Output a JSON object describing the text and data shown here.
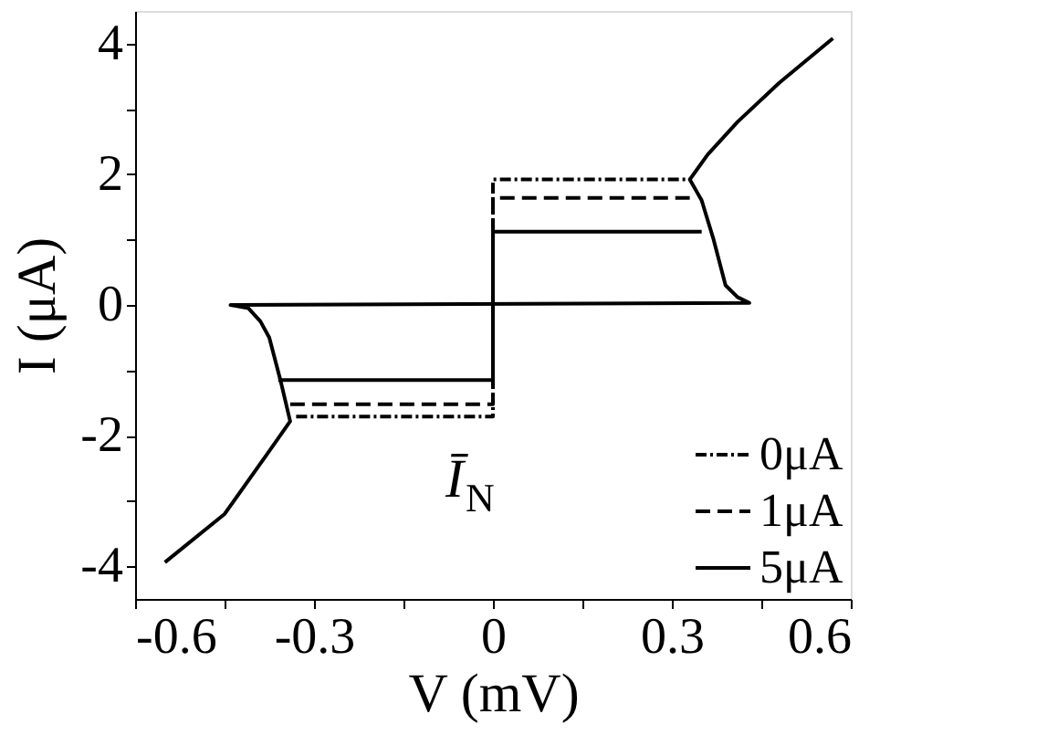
{
  "chart_data": {
    "type": "line",
    "xlabel": "V (mV)",
    "ylabel": "I (μA)",
    "xlim": [
      -0.6,
      0.6
    ],
    "ylim": [
      -4.5,
      4.5
    ],
    "xticks": [
      -0.6,
      {
        "value": -0.45,
        "label": null
      },
      -0.3,
      {
        "value": -0.15,
        "label": null
      },
      0,
      {
        "value": 0.15,
        "label": null
      },
      0.3,
      {
        "value": 0.45,
        "label": null
      },
      0.6
    ],
    "yticks": [
      -4,
      {
        "value": -3,
        "label": null
      },
      -2,
      {
        "value": -1,
        "label": null
      },
      0,
      {
        "value": 1,
        "label": null
      },
      2,
      {
        "value": 3,
        "label": null
      },
      4
    ],
    "grid": false,
    "legend": "bottom right",
    "marker": "none",
    "annotations": [
      "Ī$_{N}$"
    ],
    "series": [
      {
        "name": "0μA",
        "color": "#000000",
        "line_style": "dotted",
        "x": [
          -0.33,
          0,
          0,
          0.33
        ],
        "values": [
          -1.71,
          -1.71,
          1.92,
          1.92
        ]
      },
      {
        "name": "1μA",
        "color": "#000000",
        "line_style": "dashed",
        "x": [
          -0.34,
          0,
          0,
          0.33
        ],
        "values": [
          -1.52,
          -1.52,
          1.64,
          1.64
        ]
      },
      {
        "name": "5μA",
        "color": "#000000",
        "line_style": "solid",
        "x": [
          -0.36,
          0,
          0,
          0.35
        ],
        "values": [
          -1.15,
          -1.15,
          1.12,
          1.12
        ]
      },
      {
        "color": "#000000",
        "line_style": "solid",
        "x": [
          -0.55,
          -0.45,
          -0.38,
          -0.34,
          -0.355,
          -0.375,
          -0.39,
          -0.41,
          -0.44,
          0.43,
          0.41,
          0.39,
          0.37,
          0.35,
          0.33,
          0.36,
          0.41,
          0.48,
          0.57
        ],
        "values": [
          -3.94,
          -3.2,
          -2.3,
          -1.78,
          -1.2,
          -0.5,
          -0.25,
          -0.05,
          0.0,
          0.03,
          0.12,
          0.3,
          1.0,
          1.6,
          1.92,
          2.3,
          2.8,
          3.4,
          4.08
        ]
      }
    ]
  }
}
